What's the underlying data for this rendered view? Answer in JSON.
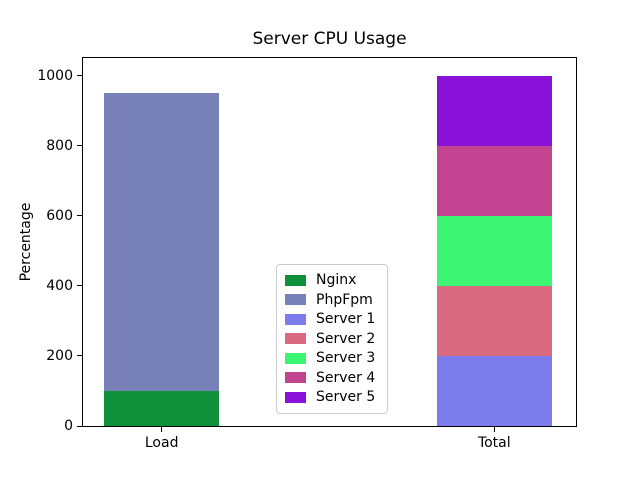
{
  "chart_data": {
    "type": "bar",
    "stacked": true,
    "title": "Server CPU Usage",
    "xlabel": "",
    "ylabel": "Percentage",
    "categories": [
      "Load",
      "Total"
    ],
    "series": [
      {
        "name": "Nginx",
        "color": "#0e9138",
        "values": [
          100,
          0
        ]
      },
      {
        "name": "PhpFpm",
        "color": "#7780b7",
        "values": [
          850,
          0
        ]
      },
      {
        "name": "Server 1",
        "color": "#7c7ced",
        "values": [
          0,
          200
        ]
      },
      {
        "name": "Server 2",
        "color": "#da6a7f",
        "values": [
          0,
          200
        ]
      },
      {
        "name": "Server 3",
        "color": "#3cf572",
        "values": [
          0,
          200
        ]
      },
      {
        "name": "Server 4",
        "color": "#c2438f",
        "values": [
          0,
          200
        ]
      },
      {
        "name": "Server 5",
        "color": "#8a11d8",
        "values": [
          0,
          200
        ]
      }
    ],
    "stack_totals": [
      950,
      1000
    ],
    "ylim": [
      0,
      1050
    ],
    "yticks": [
      0,
      200,
      400,
      600,
      800,
      1000
    ],
    "legend_position": "lower center inside plot",
    "grid": false,
    "background": "#ffffff"
  }
}
